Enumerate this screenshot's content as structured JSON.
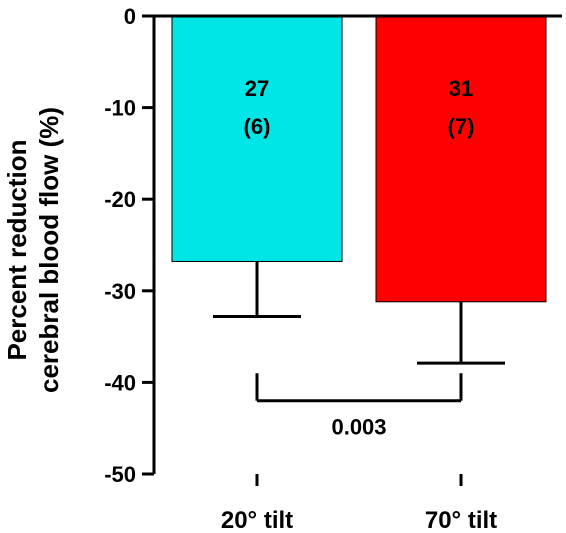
{
  "chart_data": {
    "type": "bar",
    "title": "",
    "xlabel": "",
    "ylabel_lines": [
      "Percent reduction",
      "cerebral blood flow (%)"
    ],
    "ylim": [
      -50,
      0
    ],
    "yticks": [
      0,
      -10,
      -20,
      -30,
      -40,
      -50
    ],
    "ytick_labels": [
      "0",
      "-10",
      "-20",
      "-30",
      "-40",
      "-50"
    ],
    "grid": false,
    "categories": [
      "20° tilt",
      "70° tilt"
    ],
    "values": [
      -26.8,
      -31.2
    ],
    "error_lower": [
      -32.8,
      -37.9
    ],
    "bar_labels": [
      {
        "value": "27",
        "sd": "(6)"
      },
      {
        "value": "31",
        "sd": "(7)"
      }
    ],
    "colors": [
      "#00e5e5",
      "#ff0000"
    ],
    "significance": {
      "between": [
        "20° tilt",
        "70° tilt"
      ],
      "p_value": "0.003",
      "bracket_y": -42,
      "bracket_tick_top": -39
    }
  }
}
